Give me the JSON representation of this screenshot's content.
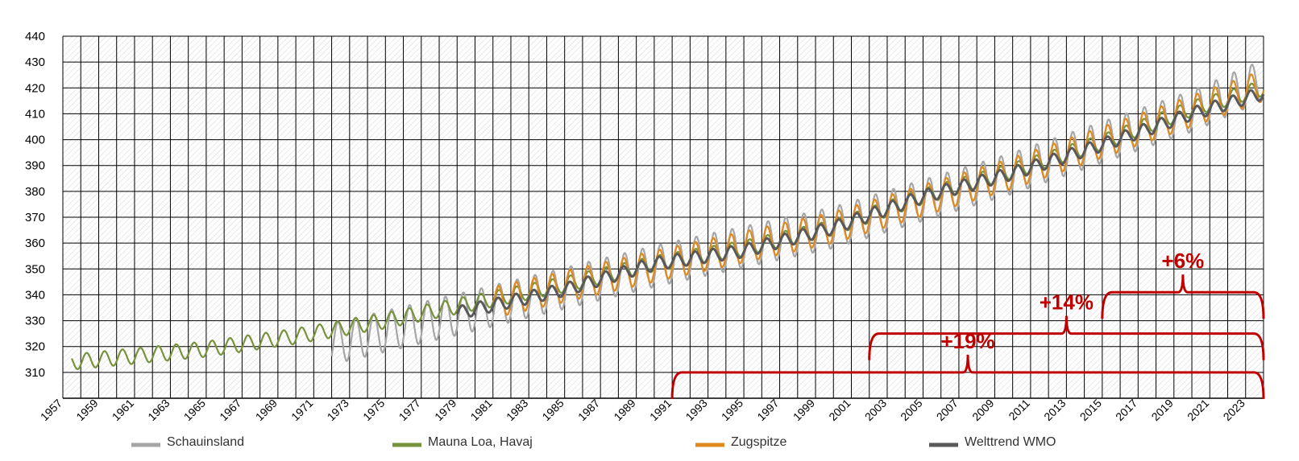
{
  "chart_data": {
    "type": "line",
    "title": "",
    "xlabel": "",
    "ylabel": "",
    "xlim": [
      1957,
      2024
    ],
    "ylim": [
      300,
      440
    ],
    "ytick_step": 10,
    "grid": true,
    "legend_position": "bottom",
    "y_tick_labels": [
      "310",
      "320",
      "330",
      "340",
      "350",
      "360",
      "370",
      "380",
      "390",
      "400",
      "410",
      "420",
      "430",
      "440"
    ],
    "x_tick_labels": [
      "1957",
      "1959",
      "1961",
      "1963",
      "1965",
      "1967",
      "1969",
      "1971",
      "1973",
      "1975",
      "1977",
      "1979",
      "1981",
      "1983",
      "1985",
      "1987",
      "1989",
      "1991",
      "1993",
      "1995",
      "1997",
      "1999",
      "2001",
      "2003",
      "2005",
      "2007",
      "2009",
      "2011",
      "2013",
      "2015",
      "2017",
      "2019",
      "2021",
      "2023"
    ],
    "series": [
      {
        "name": "Schauinsland",
        "color": "#a6a6a6",
        "start": 1972.0,
        "end": 2024.0,
        "seasonal_amplitude": 8,
        "trend": [
          [
            1972,
            321
          ],
          [
            1980,
            334
          ],
          [
            1990,
            351
          ],
          [
            2000,
            366
          ],
          [
            2010,
            387
          ],
          [
            2020,
            411
          ],
          [
            2024,
            423
          ]
        ]
      },
      {
        "name": "Mauna Loa, Havaj",
        "color": "#77933c",
        "start": 1957.5,
        "end": 2024.0,
        "seasonal_amplitude": 3,
        "trend": [
          [
            1957.5,
            314
          ],
          [
            1965,
            319
          ],
          [
            1970,
            324
          ],
          [
            1975,
            330
          ],
          [
            1980,
            337
          ],
          [
            1985,
            344
          ],
          [
            1990,
            352
          ],
          [
            1995,
            358
          ],
          [
            2000,
            366
          ],
          [
            2005,
            378
          ],
          [
            2010,
            388
          ],
          [
            2015,
            399
          ],
          [
            2020,
            412
          ],
          [
            2024,
            420
          ]
        ]
      },
      {
        "name": "Zugspitze",
        "color": "#e08a1e",
        "start": 1981.0,
        "end": 2024.0,
        "seasonal_amplitude": 6,
        "trend": [
          [
            1981,
            337
          ],
          [
            1990,
            351
          ],
          [
            2000,
            366
          ],
          [
            2010,
            387
          ],
          [
            2020,
            411
          ],
          [
            2024,
            421
          ]
        ]
      },
      {
        "name": "Welttrend WMO",
        "color": "#595959",
        "start": 1979.0,
        "end": 2024.0,
        "seasonal_amplitude": 2.5,
        "trend": [
          [
            1979,
            333
          ],
          [
            1985,
            342
          ],
          [
            1990,
            352
          ],
          [
            1995,
            357
          ],
          [
            2000,
            366
          ],
          [
            2005,
            378
          ],
          [
            2010,
            387
          ],
          [
            2015,
            398
          ],
          [
            2020,
            410
          ],
          [
            2024,
            418
          ]
        ]
      }
    ],
    "annotations": [
      {
        "label": "+19%",
        "from": 1991.0,
        "to": 2024.0,
        "level": 310
      },
      {
        "label": "+14%",
        "from": 2002.0,
        "to": 2024.0,
        "level": 325
      },
      {
        "label": "+6%",
        "from": 2015.0,
        "to": 2024.0,
        "level": 341
      }
    ],
    "annotation_color": "#c00000"
  }
}
